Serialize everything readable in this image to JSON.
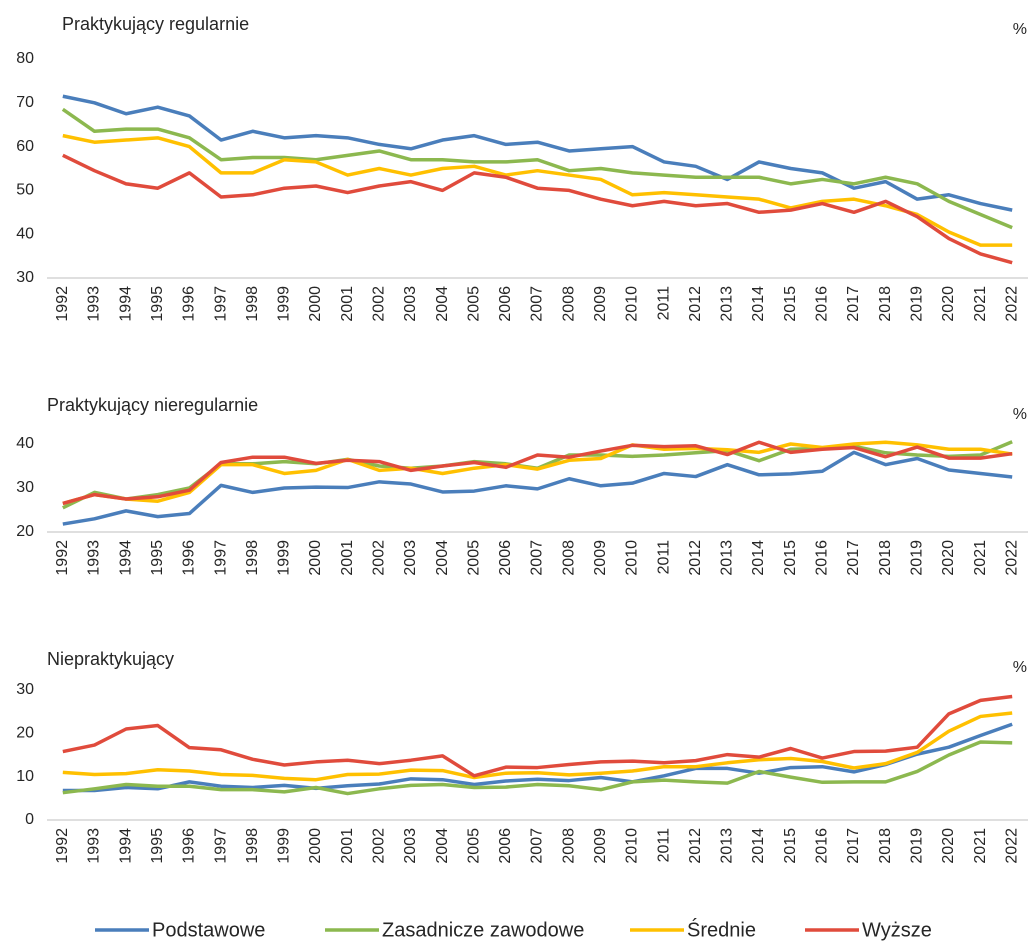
{
  "chart_data": [
    {
      "type": "line",
      "title": "Praktykujący regularnie",
      "unit": "%",
      "categories": [
        "1992",
        "1993",
        "1994",
        "1995",
        "1996",
        "1997",
        "1998",
        "1999",
        "2000",
        "2001",
        "2002",
        "2003",
        "2004",
        "2005",
        "2006",
        "2007",
        "2008",
        "2009",
        "2010",
        "2011",
        "2012",
        "2013",
        "2014",
        "2015",
        "2016",
        "2017",
        "2018",
        "2019",
        "2020",
        "2021",
        "2022"
      ],
      "ylim": [
        30,
        80
      ],
      "yticks": [
        30,
        40,
        50,
        60,
        70,
        80
      ],
      "grid": false,
      "series": [
        {
          "name": "Podstawowe",
          "color": "#4a7ebb",
          "values": [
            71.5,
            70,
            67.5,
            69,
            67,
            61.5,
            63.5,
            62,
            62.5,
            62,
            60.5,
            59.5,
            61.5,
            62.5,
            60.5,
            61,
            59,
            59.5,
            60,
            56.5,
            55.5,
            52.5,
            56.5,
            55,
            54,
            50.5,
            52,
            48,
            49,
            47,
            45.5
          ]
        },
        {
          "name": "Zasadnicze zawodowe",
          "color": "#8cb84f",
          "values": [
            68.5,
            63.5,
            64,
            64,
            62,
            57,
            57.5,
            57.5,
            57,
            58,
            59,
            57,
            57,
            56.5,
            56.5,
            57,
            54.5,
            55,
            54,
            53.5,
            53,
            53,
            53,
            51.5,
            52.5,
            51.5,
            53,
            51.5,
            47.5,
            44.5,
            41.5
          ]
        },
        {
          "name": "Średnie",
          "color": "#ffc000",
          "values": [
            62.5,
            61,
            61.5,
            62,
            60,
            54,
            54,
            57,
            56.5,
            53.5,
            55,
            53.5,
            55,
            55.5,
            53.5,
            54.5,
            53.5,
            52.5,
            49,
            49.5,
            49,
            48.5,
            48,
            46,
            47.5,
            48,
            46.5,
            44.5,
            40.5,
            37.5,
            37.5
          ]
        },
        {
          "name": "Wyższe",
          "color": "#e04b3c",
          "values": [
            58,
            54.5,
            51.5,
            50.5,
            54,
            48.5,
            49,
            50.5,
            51,
            49.5,
            51,
            52,
            50,
            54,
            53,
            50.5,
            50,
            48,
            46.5,
            47.5,
            46.5,
            47,
            45,
            45.5,
            47,
            45,
            47.5,
            44,
            39,
            35.5,
            33.5
          ]
        }
      ]
    },
    {
      "type": "line",
      "title": "Praktykujący nieregularnie",
      "unit": "%",
      "categories": [
        "1992",
        "1993",
        "1994",
        "1995",
        "1996",
        "1997",
        "1998",
        "1999",
        "2000",
        "2001",
        "2002",
        "2003",
        "2004",
        "2005",
        "2006",
        "2007",
        "2008",
        "2009",
        "2010",
        "2011",
        "2012",
        "2013",
        "2014",
        "2015",
        "2016",
        "2017",
        "2018",
        "2019",
        "2020",
        "2021",
        "2022"
      ],
      "ylim": [
        20,
        40
      ],
      "yticks": [
        20,
        30,
        40
      ],
      "grid": false,
      "series": [
        {
          "color": "#4a7ebb",
          "values": [
            21.8,
            23,
            24.8,
            23.5,
            24.2,
            30.6,
            29,
            30,
            30.2,
            30.1,
            31.4,
            30.9,
            29.1,
            29.3,
            30.5,
            29.8,
            32.1,
            30.5,
            31.1,
            33.3,
            32.6,
            35.3,
            33,
            33.2,
            33.8,
            38.1,
            35.3,
            36.7,
            34.1,
            33.3,
            32.5
          ]
        },
        {
          "color": "#8cb84f",
          "values": [
            25.5,
            29,
            27.5,
            28.5,
            30,
            35.5,
            35.5,
            36,
            35.5,
            36.5,
            35,
            34.5,
            35,
            36,
            35.5,
            34.5,
            37.5,
            37.5,
            37.2,
            37.5,
            38,
            38.5,
            36.2,
            38.8,
            39,
            39.5,
            38,
            37.5,
            37.2,
            37.5,
            40.5
          ]
        },
        {
          "color": "#ffc000",
          "values": [
            26.5,
            28.5,
            27.5,
            27,
            29,
            35.3,
            35.3,
            33.3,
            34,
            36.5,
            34,
            34.5,
            33.3,
            34.5,
            35.3,
            34.3,
            36.3,
            36.7,
            39.8,
            38.8,
            39,
            38.7,
            38.1,
            40,
            39.2,
            40,
            40.4,
            39.8,
            38.8,
            38.8,
            37.7
          ]
        },
        {
          "color": "#e04b3c",
          "values": [
            26.5,
            28.5,
            27.5,
            28,
            29.5,
            35.8,
            37,
            37,
            35.6,
            36.3,
            36,
            34,
            35,
            35.8,
            34.7,
            37.5,
            37,
            38.4,
            39.7,
            39.4,
            39.6,
            37.6,
            40.4,
            38.1,
            38.8,
            39.2,
            37.1,
            39.3,
            36.8,
            36.8,
            37.8
          ]
        }
      ]
    },
    {
      "type": "line",
      "title": "Niepraktykujący",
      "unit": "%",
      "categories": [
        "1992",
        "1993",
        "1994",
        "1995",
        "1996",
        "1997",
        "1998",
        "1999",
        "2000",
        "2001",
        "2002",
        "2003",
        "2004",
        "2005",
        "2006",
        "2007",
        "2008",
        "2009",
        "2010",
        "2011",
        "2012",
        "2013",
        "2014",
        "2015",
        "2016",
        "2017",
        "2018",
        "2019",
        "2020",
        "2021",
        "2022"
      ],
      "ylim": [
        0,
        30
      ],
      "yticks": [
        0,
        10,
        20,
        30
      ],
      "grid": false,
      "series": [
        {
          "color": "#4a7ebb",
          "values": [
            6.8,
            6.8,
            7.5,
            7.2,
            8.8,
            7.8,
            7.5,
            8,
            7.3,
            7.9,
            8.3,
            9.5,
            9.3,
            8.2,
            9,
            9.4,
            9.1,
            9.8,
            8.8,
            10.2,
            11.9,
            11.9,
            10.8,
            12.1,
            12.3,
            11.1,
            12.8,
            15.2,
            16.8,
            19.5,
            22.1
          ]
        },
        {
          "color": "#8cb84f",
          "values": [
            6.3,
            7.2,
            8.2,
            7.8,
            7.8,
            7,
            7,
            6.5,
            7.5,
            6.1,
            7.2,
            8,
            8.2,
            7.5,
            7.6,
            8.2,
            7.9,
            7,
            8.8,
            9.2,
            8.8,
            8.5,
            11.2,
            9.9,
            8.7,
            8.8,
            8.8,
            11.2,
            15,
            18,
            17.8
          ]
        },
        {
          "color": "#ffc000",
          "values": [
            11,
            10.5,
            10.7,
            11.6,
            11.3,
            10.5,
            10.3,
            9.6,
            9.3,
            10.5,
            10.6,
            11.5,
            11.4,
            9.8,
            10.8,
            10.9,
            10.4,
            10.8,
            11.3,
            12.3,
            12.3,
            13.2,
            13.9,
            14.2,
            13.5,
            12,
            13,
            15.6,
            20.5,
            23.9,
            24.7
          ]
        },
        {
          "color": "#e04b3c",
          "values": [
            15.8,
            17.3,
            21,
            21.8,
            16.7,
            16.2,
            14,
            12.7,
            13.4,
            13.8,
            13,
            13.8,
            14.8,
            10.2,
            12.2,
            12.1,
            12.8,
            13.4,
            13.6,
            13.2,
            13.7,
            15.1,
            14.5,
            16.5,
            14.3,
            15.8,
            15.9,
            16.8,
            24.5,
            27.6,
            28.5
          ]
        }
      ]
    }
  ]
}
